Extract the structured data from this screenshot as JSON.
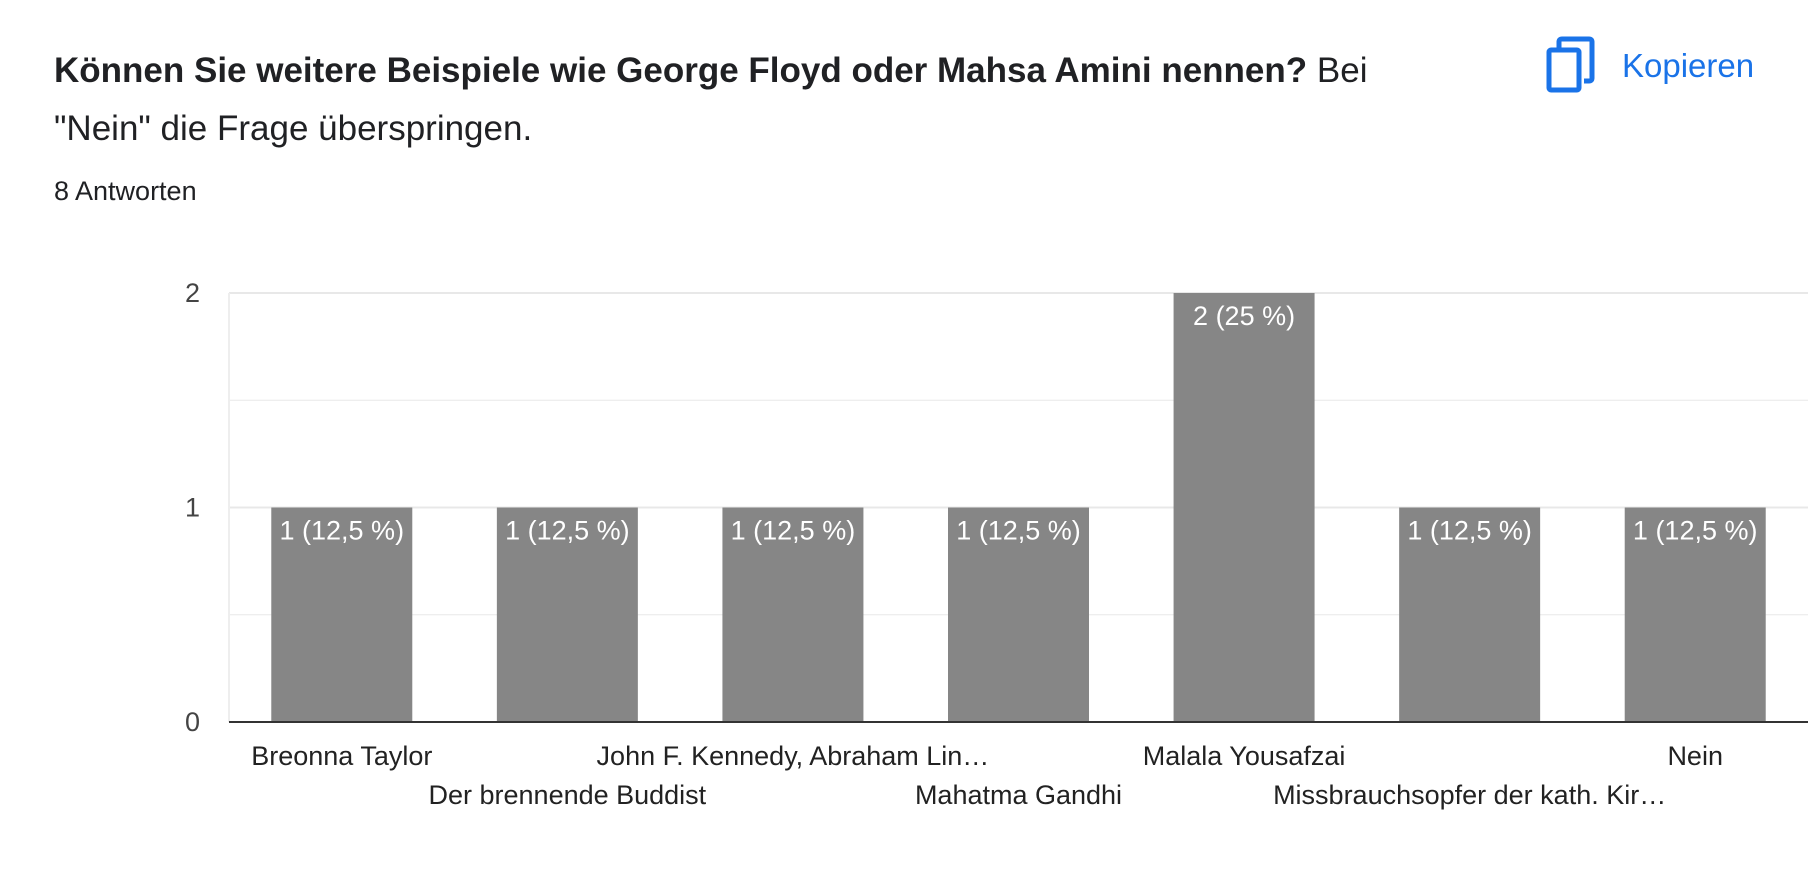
{
  "question": {
    "title_bold": "Können Sie weitere Beispiele wie George Floyd oder Mahsa Amini nennen?",
    "title_rest": " Bei \"Nein\" die Frage überspringen.",
    "response_count": "8 Antworten"
  },
  "toolbar": {
    "copy_label": "Kopieren",
    "copy_icon": "copy-icon"
  },
  "colors": {
    "bar": "#868686",
    "accent": "#1a73e8",
    "grid": "#e8e8e8",
    "axis": "#333333"
  },
  "chart_data": {
    "type": "bar",
    "categories": [
      "Breonna Taylor",
      "Der brennende Buddist",
      "John F. Kennedy, Abraham Lin…",
      "Mahatma Gandhi",
      "Malala Yousafzai",
      "Missbrauchsopfer der kath. Kir…",
      "Nein"
    ],
    "values": [
      1,
      1,
      1,
      1,
      2,
      1,
      1
    ],
    "data_labels": [
      "1 (12,5 %)",
      "1 (12,5 %)",
      "1 (12,5 %)",
      "1 (12,5 %)",
      "2 (25 %)",
      "1 (12,5 %)",
      "1 (12,5 %)"
    ],
    "y_ticks": [
      "0",
      "1",
      "2"
    ],
    "ylim": [
      0,
      2
    ],
    "grid": true
  }
}
